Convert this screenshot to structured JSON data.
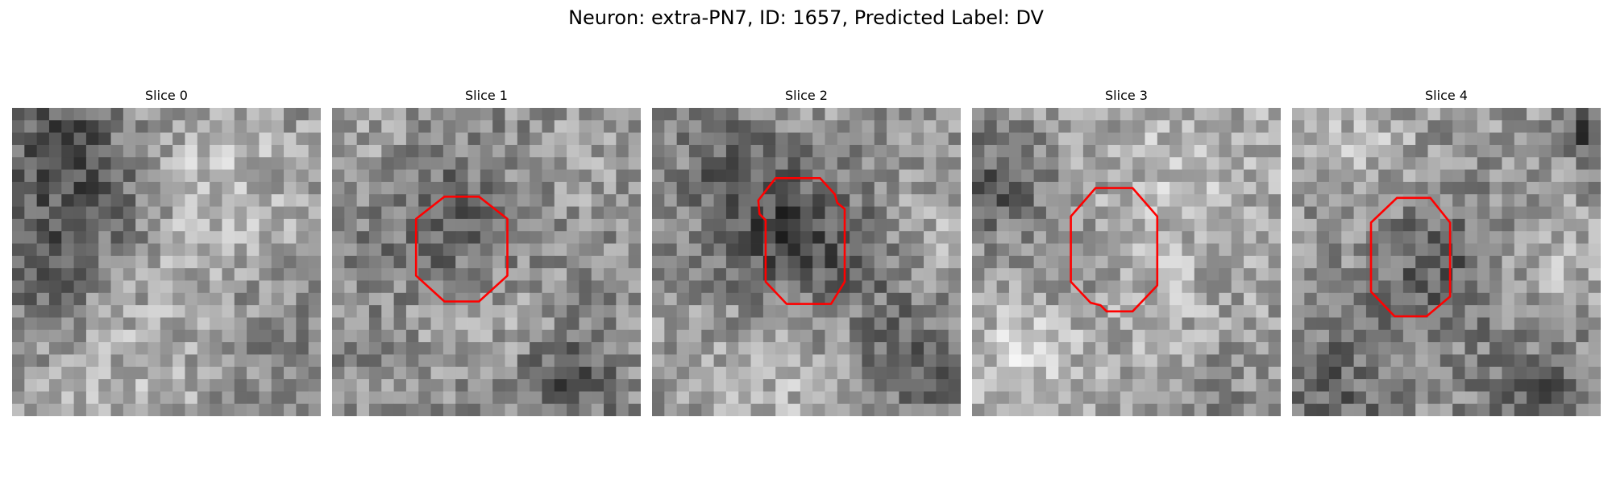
{
  "figure": {
    "title": "Neuron: extra-PN7, ID: 1657, Predicted Label: DV",
    "outline_color": "#ff0000"
  },
  "panels": [
    {
      "title": "Slice 0",
      "has_outline": false,
      "description": "noisy grayscale patch, darker blotch upper-left and lower-left, brighter region center-right"
    },
    {
      "title": "Slice 1",
      "has_outline": true,
      "description": "noisy grayscale patch with dark band above a rounded cell, outlined by a red octagon"
    },
    {
      "title": "Slice 2",
      "has_outline": true,
      "description": "dark mottled cell body outlined by a red octagon"
    },
    {
      "title": "Slice 3",
      "has_outline": true,
      "description": "lighter cell interior outlined by a red octagon"
    },
    {
      "title": "Slice 4",
      "has_outline": true,
      "description": "dark cell body with bright surround, outlined by a red octagon"
    }
  ]
}
